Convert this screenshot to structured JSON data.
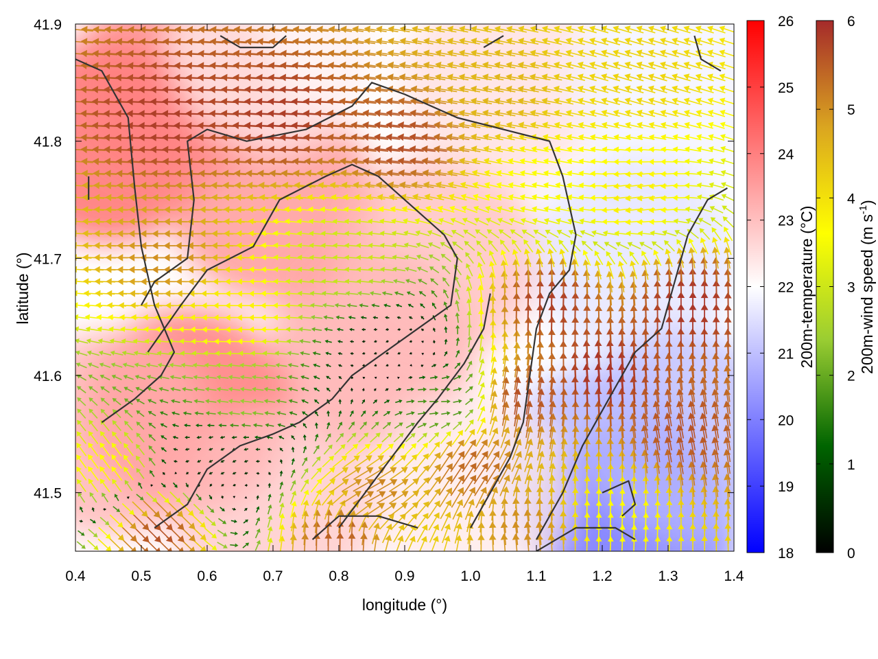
{
  "chart_data": {
    "type": "heatmap",
    "title": "",
    "xlabel": "longitude (°)",
    "ylabel": "latitude (°)",
    "xlim": [
      0.4,
      1.4
    ],
    "ylim": [
      41.45,
      41.9
    ],
    "x_ticks": [
      "0.4",
      "0.5",
      "0.6",
      "0.7",
      "0.8",
      "0.9",
      "1.0",
      "1.1",
      "1.2",
      "1.3",
      "1.4"
    ],
    "y_ticks": [
      "41.5",
      "41.6",
      "41.7",
      "41.8",
      "41.9"
    ],
    "temperature_colorbar": {
      "label": "200m-temperature (°C)",
      "range": [
        18,
        26
      ],
      "ticks": [
        "18",
        "19",
        "20",
        "21",
        "22",
        "23",
        "24",
        "25",
        "26"
      ],
      "colors": [
        "#0000ff",
        "#ffffff",
        "#ff0000"
      ]
    },
    "wind_colorbar": {
      "label_main": "200m-wind speed (m s",
      "label_sup": "-1",
      "label_end": ")",
      "range": [
        0,
        6
      ],
      "ticks": [
        "0",
        "1",
        "2",
        "3",
        "4",
        "5",
        "6"
      ],
      "colors": [
        "#000000",
        "#006400",
        "#9acd32",
        "#ffff00",
        "#daa520",
        "#a52a2a"
      ]
    },
    "grid": false,
    "legend": "none",
    "coastline_color": "#333333",
    "temperature_regions": [
      {
        "lon": 0.45,
        "lat": 41.8,
        "t": 24.8
      },
      {
        "lon": 0.55,
        "lat": 41.85,
        "t": 24.2
      },
      {
        "lon": 0.7,
        "lat": 41.75,
        "t": 24.0
      },
      {
        "lon": 0.85,
        "lat": 41.62,
        "t": 23.6
      },
      {
        "lon": 0.57,
        "lat": 41.57,
        "t": 24.6
      },
      {
        "lon": 0.95,
        "lat": 41.7,
        "t": 23.2
      },
      {
        "lon": 1.05,
        "lat": 41.85,
        "t": 22.6
      },
      {
        "lon": 1.3,
        "lat": 41.85,
        "t": 21.8
      },
      {
        "lon": 1.25,
        "lat": 41.7,
        "t": 21.5
      },
      {
        "lon": 1.2,
        "lat": 41.52,
        "t": 20.6
      },
      {
        "lon": 1.25,
        "lat": 41.47,
        "t": 19.6
      },
      {
        "lon": 1.32,
        "lat": 41.55,
        "t": 20.8
      },
      {
        "lon": 1.0,
        "lat": 41.5,
        "t": 22.4
      },
      {
        "lon": 0.7,
        "lat": 41.48,
        "t": 23.0
      },
      {
        "lon": 0.45,
        "lat": 41.55,
        "t": 23.4
      },
      {
        "lon": 0.7,
        "lat": 41.88,
        "t": 22.3
      }
    ],
    "wind_regions": [
      {
        "lon": 0.55,
        "lat": 41.82,
        "u": -5.8,
        "v": 0.2
      },
      {
        "lon": 0.72,
        "lat": 41.82,
        "u": -5.8,
        "v": 0.3
      },
      {
        "lon": 0.9,
        "lat": 41.8,
        "u": -5.6,
        "v": 0.6
      },
      {
        "lon": 1.05,
        "lat": 41.84,
        "u": -4.5,
        "v": 0.8
      },
      {
        "lon": 1.25,
        "lat": 41.86,
        "u": -4.0,
        "v": 1.2
      },
      {
        "lon": 1.25,
        "lat": 41.75,
        "u": -3.8,
        "v": -0.5
      },
      {
        "lon": 0.55,
        "lat": 41.7,
        "u": -5.0,
        "v": 0.0
      },
      {
        "lon": 0.65,
        "lat": 41.65,
        "u": -3.8,
        "v": 0.0
      },
      {
        "lon": 0.82,
        "lat": 41.7,
        "u": -3.0,
        "v": 0.2
      },
      {
        "lon": 0.88,
        "lat": 41.62,
        "u": -0.4,
        "v": -0.2
      },
      {
        "lon": 0.65,
        "lat": 41.58,
        "u": -2.4,
        "v": 0.3
      },
      {
        "lon": 0.62,
        "lat": 41.53,
        "u": -0.6,
        "v": -0.3
      },
      {
        "lon": 0.95,
        "lat": 41.58,
        "u": 1.8,
        "v": 0.0
      },
      {
        "lon": 0.45,
        "lat": 41.52,
        "u": -2.2,
        "v": 3.0
      },
      {
        "lon": 0.52,
        "lat": 41.47,
        "u": 4.0,
        "v": -4.0
      },
      {
        "lon": 0.85,
        "lat": 41.5,
        "u": 4.5,
        "v": 2.5
      },
      {
        "lon": 1.0,
        "lat": 41.52,
        "u": 3.0,
        "v": 4.5
      },
      {
        "lon": 1.08,
        "lat": 41.58,
        "u": 0.8,
        "v": 5.6
      },
      {
        "lon": 1.12,
        "lat": 41.66,
        "u": 0.2,
        "v": 5.8
      },
      {
        "lon": 1.2,
        "lat": 41.6,
        "u": -0.4,
        "v": 5.9
      },
      {
        "lon": 1.33,
        "lat": 41.66,
        "u": 0.0,
        "v": 5.9
      },
      {
        "lon": 1.32,
        "lat": 41.55,
        "u": -1.0,
        "v": 5.5
      },
      {
        "lon": 1.22,
        "lat": 41.48,
        "u": 0.2,
        "v": 3.6
      },
      {
        "lon": 1.08,
        "lat": 41.47,
        "u": -0.5,
        "v": 5.0
      },
      {
        "lon": 0.8,
        "lat": 41.46,
        "u": 0.0,
        "v": 5.5
      },
      {
        "lon": 1.12,
        "lat": 41.76,
        "u": -3.5,
        "v": 0.6
      }
    ],
    "coastlines": [
      [
        [
          0.5,
          41.66
        ],
        [
          0.52,
          41.68
        ],
        [
          0.57,
          41.7
        ],
        [
          0.58,
          41.75
        ],
        [
          0.57,
          41.8
        ],
        [
          0.6,
          41.81
        ],
        [
          0.66,
          41.8
        ],
        [
          0.75,
          41.81
        ],
        [
          0.82,
          41.83
        ],
        [
          0.85,
          41.85
        ],
        [
          0.9,
          41.84
        ],
        [
          0.98,
          41.82
        ],
        [
          1.05,
          41.81
        ],
        [
          1.12,
          41.8
        ],
        [
          1.14,
          41.77
        ],
        [
          1.16,
          41.72
        ],
        [
          1.15,
          41.69
        ],
        [
          1.12,
          41.67
        ],
        [
          1.1,
          41.64
        ],
        [
          1.09,
          41.6
        ],
        [
          1.08,
          41.56
        ],
        [
          1.06,
          41.53
        ],
        [
          1.03,
          41.5
        ],
        [
          1.0,
          41.47
        ]
      ],
      [
        [
          0.51,
          41.62
        ],
        [
          0.56,
          41.66
        ],
        [
          0.6,
          41.69
        ],
        [
          0.67,
          41.71
        ],
        [
          0.71,
          41.75
        ],
        [
          0.78,
          41.77
        ],
        [
          0.82,
          41.78
        ],
        [
          0.86,
          41.77
        ],
        [
          0.92,
          41.74
        ],
        [
          0.96,
          41.72
        ],
        [
          0.98,
          41.7
        ],
        [
          0.97,
          41.66
        ],
        [
          0.92,
          41.64
        ],
        [
          0.87,
          41.62
        ],
        [
          0.82,
          41.6
        ],
        [
          0.79,
          41.58
        ],
        [
          0.74,
          41.56
        ],
        [
          0.7,
          41.55
        ],
        [
          0.65,
          41.54
        ],
        [
          0.6,
          41.52
        ],
        [
          0.57,
          41.49
        ],
        [
          0.52,
          41.47
        ]
      ],
      [
        [
          0.44,
          41.56
        ],
        [
          0.49,
          41.58
        ],
        [
          0.53,
          41.6
        ],
        [
          0.55,
          41.62
        ],
        [
          0.52,
          41.66
        ],
        [
          0.5,
          41.71
        ],
        [
          0.49,
          41.76
        ],
        [
          0.48,
          41.82
        ],
        [
          0.44,
          41.86
        ],
        [
          0.4,
          41.87
        ]
      ],
      [
        [
          0.8,
          41.47
        ],
        [
          0.84,
          41.5
        ],
        [
          0.88,
          41.53
        ],
        [
          0.92,
          41.56
        ],
        [
          0.95,
          41.58
        ],
        [
          0.99,
          41.61
        ],
        [
          1.02,
          41.64
        ],
        [
          1.03,
          41.67
        ]
      ],
      [
        [
          1.1,
          41.46
        ],
        [
          1.14,
          41.5
        ],
        [
          1.17,
          41.54
        ],
        [
          1.21,
          41.58
        ],
        [
          1.25,
          41.62
        ],
        [
          1.29,
          41.64
        ],
        [
          1.31,
          41.68
        ],
        [
          1.33,
          41.72
        ],
        [
          1.36,
          41.75
        ],
        [
          1.39,
          41.76
        ]
      ],
      [
        [
          0.62,
          41.89
        ],
        [
          0.65,
          41.88
        ],
        [
          0.7,
          41.88
        ],
        [
          0.72,
          41.89
        ]
      ],
      [
        [
          0.76,
          41.46
        ],
        [
          0.8,
          41.48
        ],
        [
          0.86,
          41.48
        ],
        [
          0.92,
          41.47
        ]
      ],
      [
        [
          1.1,
          41.45
        ],
        [
          1.16,
          41.47
        ],
        [
          1.22,
          41.47
        ],
        [
          1.25,
          41.46
        ]
      ],
      [
        [
          1.34,
          41.89
        ],
        [
          1.35,
          41.87
        ],
        [
          1.38,
          41.86
        ]
      ],
      [
        [
          1.2,
          41.5
        ],
        [
          1.24,
          41.51
        ],
        [
          1.25,
          41.49
        ],
        [
          1.23,
          41.48
        ]
      ],
      [
        [
          1.02,
          41.88
        ],
        [
          1.05,
          41.89
        ]
      ],
      [
        [
          0.42,
          41.77
        ],
        [
          0.42,
          41.75
        ]
      ]
    ]
  }
}
